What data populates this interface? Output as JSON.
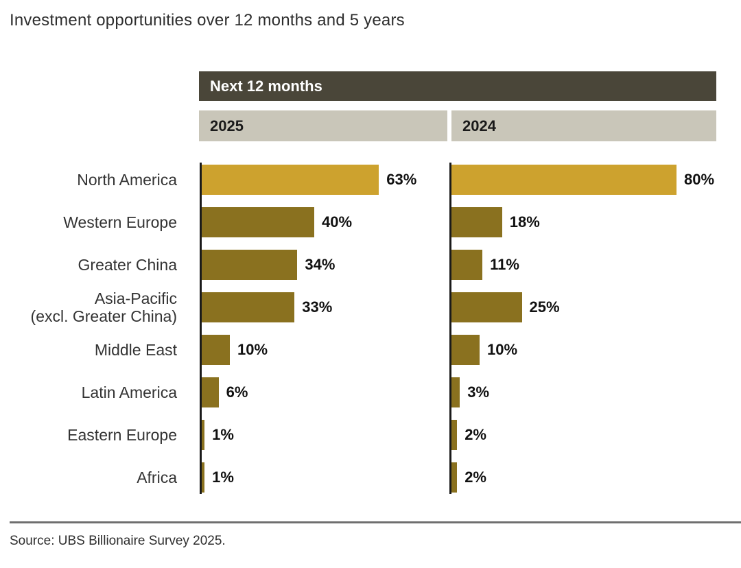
{
  "title": "Investment opportunities over 12 months and 5 years",
  "source": "Source: UBS Billionaire Survey 2025.",
  "chart_data": {
    "type": "bar",
    "orientation": "horizontal",
    "group_header": "Next 12 months",
    "categories": [
      "North America",
      "Western Europe",
      "Greater China",
      "Asia-Pacific (excl. Greater China)",
      "Middle East",
      "Latin America",
      "Eastern Europe",
      "Africa"
    ],
    "category_label_lines": [
      [
        "North America"
      ],
      [
        "Western Europe"
      ],
      [
        "Greater China"
      ],
      [
        "Asia-Pacific",
        "(excl. Greater China)"
      ],
      [
        "Middle East"
      ],
      [
        "Latin America"
      ],
      [
        "Eastern Europe"
      ],
      [
        "Africa"
      ]
    ],
    "series": [
      {
        "name": "2025",
        "values": [
          63,
          40,
          34,
          33,
          10,
          6,
          1,
          1
        ]
      },
      {
        "name": "2024",
        "values": [
          80,
          18,
          11,
          25,
          10,
          3,
          2,
          2
        ]
      }
    ],
    "unit": "%",
    "value_labels": true,
    "xlim": [
      0,
      100
    ],
    "legend_position": "top",
    "grid": false,
    "highlight_category": "North America",
    "colors": {
      "highlight_bar": "#cda22e",
      "bar": "#8a711f",
      "header_band": "#4a4639",
      "year_band": "#c9c6b9",
      "axis": "#1a1a1a"
    }
  }
}
